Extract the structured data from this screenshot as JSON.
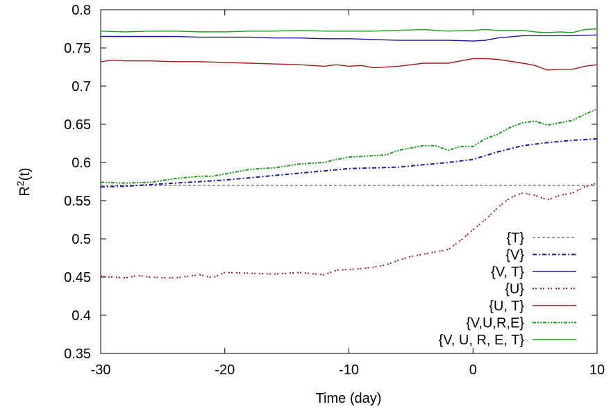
{
  "chart_data": {
    "type": "line",
    "xlabel": "Time (day)",
    "ylabel_base": "R",
    "ylabel_sup": "2",
    "ylabel_rest": "(t)",
    "xlim": [
      -30,
      10
    ],
    "ylim": [
      0.35,
      0.8
    ],
    "xticks": [
      -30,
      -20,
      -10,
      0,
      10
    ],
    "xtick_labels": [
      "-30",
      "-20",
      "-10",
      "0",
      "10"
    ],
    "yticks": [
      0.35,
      0.4,
      0.45,
      0.5,
      0.55,
      0.6,
      0.65,
      0.7,
      0.75,
      0.8
    ],
    "ytick_labels": [
      "0.35",
      "0.4",
      "0.45",
      "0.5",
      "0.55",
      "0.6",
      "0.65",
      "0.7",
      "0.75",
      "0.8"
    ],
    "grid": false,
    "legend_position": "bottom-right",
    "series": [
      {
        "name": "{T}",
        "color": "#999999",
        "dash": "4,3",
        "x": [
          -30,
          10
        ],
        "y": [
          0.57,
          0.57
        ]
      },
      {
        "name": "{V}",
        "color": "#1a1aa0",
        "dash": "6,3,2,3",
        "x": [
          -30,
          -28,
          -26,
          -24,
          -22,
          -20,
          -18,
          -16,
          -14,
          -12,
          -10,
          -8,
          -6,
          -4,
          -2,
          0,
          2,
          4,
          6,
          8,
          10
        ],
        "y": [
          0.568,
          0.569,
          0.571,
          0.573,
          0.575,
          0.577,
          0.58,
          0.583,
          0.586,
          0.589,
          0.592,
          0.593,
          0.594,
          0.597,
          0.6,
          0.604,
          0.614,
          0.622,
          0.626,
          0.629,
          0.631
        ]
      },
      {
        "name": "{V, T}",
        "color": "#1a1aa0",
        "dash": "",
        "x": [
          -30,
          -28,
          -26,
          -24,
          -22,
          -20,
          -18,
          -16,
          -14,
          -12,
          -10,
          -8,
          -6,
          -4,
          -2,
          0,
          1,
          2,
          4,
          6,
          8,
          10
        ],
        "y": [
          0.765,
          0.765,
          0.765,
          0.765,
          0.764,
          0.764,
          0.764,
          0.763,
          0.763,
          0.762,
          0.762,
          0.761,
          0.76,
          0.76,
          0.76,
          0.759,
          0.76,
          0.763,
          0.766,
          0.766,
          0.766,
          0.767
        ]
      },
      {
        "name": "{U}",
        "color": "#a01a1a",
        "dash": "2,2,2,5",
        "x": [
          -30,
          -28,
          -27,
          -26,
          -25,
          -24,
          -23,
          -22,
          -21,
          -20,
          -18,
          -16,
          -14,
          -12,
          -11,
          -10,
          -9,
          -8,
          -7,
          -6,
          -5,
          -4,
          -3,
          -2,
          -1,
          0,
          1,
          2,
          3,
          4,
          5,
          6,
          7,
          8,
          9,
          10
        ],
        "y": [
          0.451,
          0.449,
          0.452,
          0.45,
          0.449,
          0.449,
          0.451,
          0.453,
          0.449,
          0.456,
          0.455,
          0.454,
          0.456,
          0.453,
          0.459,
          0.46,
          0.461,
          0.463,
          0.466,
          0.472,
          0.477,
          0.48,
          0.483,
          0.486,
          0.498,
          0.512,
          0.525,
          0.541,
          0.554,
          0.56,
          0.557,
          0.551,
          0.557,
          0.56,
          0.568,
          0.573
        ]
      },
      {
        "name": "{U, T}",
        "color": "#a01a1a",
        "dash": "",
        "x": [
          -30,
          -29,
          -28,
          -26,
          -24,
          -22,
          -20,
          -18,
          -16,
          -14,
          -12,
          -11,
          -10,
          -9,
          -8,
          -6,
          -4,
          -2,
          0,
          1,
          2,
          4,
          5,
          6,
          7,
          8,
          9,
          10
        ],
        "y": [
          0.732,
          0.734,
          0.733,
          0.733,
          0.732,
          0.732,
          0.731,
          0.73,
          0.729,
          0.728,
          0.726,
          0.728,
          0.726,
          0.727,
          0.724,
          0.726,
          0.73,
          0.73,
          0.736,
          0.736,
          0.735,
          0.73,
          0.727,
          0.721,
          0.722,
          0.722,
          0.726,
          0.728
        ]
      },
      {
        "name": "{V,U,R,E}",
        "color": "#1a9a1a",
        "dash": "5,2,2,2,2,2",
        "x": [
          -30,
          -28,
          -26,
          -24,
          -22,
          -21,
          -20,
          -18,
          -16,
          -14,
          -12,
          -11,
          -10,
          -8,
          -7,
          -6,
          -4,
          -3,
          -2,
          -1,
          0,
          1,
          2,
          3,
          4,
          5,
          6,
          8,
          9,
          10
        ],
        "y": [
          0.574,
          0.573,
          0.574,
          0.579,
          0.582,
          0.582,
          0.585,
          0.591,
          0.593,
          0.598,
          0.6,
          0.604,
          0.607,
          0.609,
          0.61,
          0.616,
          0.622,
          0.622,
          0.616,
          0.621,
          0.621,
          0.631,
          0.637,
          0.646,
          0.652,
          0.654,
          0.649,
          0.655,
          0.663,
          0.67
        ]
      },
      {
        "name": "{V, U, R, E, T}",
        "color": "#1a9a1a",
        "dash": "",
        "x": [
          -30,
          -28,
          -26,
          -24,
          -22,
          -20,
          -18,
          -16,
          -14,
          -12,
          -10,
          -8,
          -6,
          -4,
          -2,
          0,
          1,
          2,
          4,
          5,
          6,
          7,
          8,
          9,
          10
        ],
        "y": [
          0.772,
          0.771,
          0.772,
          0.772,
          0.771,
          0.771,
          0.772,
          0.772,
          0.773,
          0.772,
          0.772,
          0.772,
          0.773,
          0.774,
          0.772,
          0.773,
          0.774,
          0.773,
          0.773,
          0.771,
          0.77,
          0.771,
          0.77,
          0.774,
          0.775
        ]
      }
    ]
  }
}
